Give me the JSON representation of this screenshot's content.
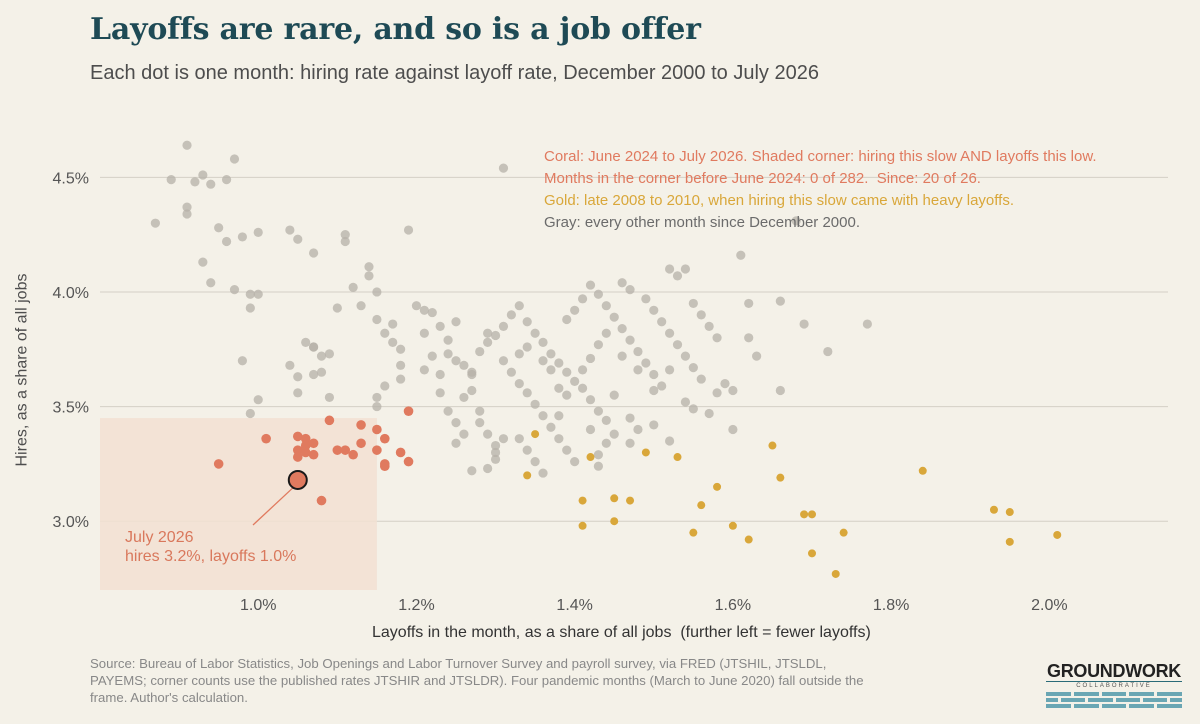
{
  "title": "Layoffs are rare, and so is a job offer",
  "subtitle": "Each dot is one month: hiring rate against layoff rate, December 2000 to July 2026",
  "legend": {
    "coral": "Coral: June 2024 to July 2026. Shaded corner: hiring this slow AND layoffs this low.",
    "counts": "Months in the corner before June 2024: 0 of 282.  Since: 20 of 26.",
    "gold": "Gold: late 2008 to 2010, when hiring this slow came with heavy layoffs.",
    "gray": "Gray: every other month since December 2000."
  },
  "annotation": {
    "line1": "July 2026",
    "line2": "hires 3.2%, layoffs 1.0%"
  },
  "source": "Source: Bureau of Labor Statistics, Job Openings and Labor Turnover Survey and payroll survey, via FRED (JTSHIL, JTSLDL, PAYEMS; corner counts use the published rates JTSHIR and JTSLDR). Four pandemic months (March to June 2020) fall outside the frame. Author's calculation.",
  "logo": {
    "name": "GROUNDWORK",
    "sub": "COLLABORATIVE"
  },
  "colors": {
    "background": "#f4f1e8",
    "title": "#1e4a55",
    "coral": "#e07a5f",
    "gold": "#d9a73a",
    "gray": "#b5b0a8",
    "shade": "#f2e0d2"
  },
  "chart_data": {
    "type": "scatter",
    "xlabel": "Layoffs in the month, as a share of all jobs  (further left = fewer layoffs)",
    "ylabel": "Hires, as a share of all jobs",
    "xlim": [
      0.8,
      2.15
    ],
    "ylim": [
      2.7,
      4.75
    ],
    "xticks": [
      "1.0%",
      "1.2%",
      "1.4%",
      "1.6%",
      "1.8%",
      "2.0%"
    ],
    "xtick_values": [
      1.0,
      1.2,
      1.4,
      1.6,
      1.8,
      2.0
    ],
    "yticks": [
      "3.0%",
      "3.5%",
      "4.0%",
      "4.5%"
    ],
    "ytick_values": [
      3.0,
      3.5,
      4.0,
      4.5
    ],
    "grid": "horizontal",
    "shaded_corner": {
      "x_max": 1.15,
      "y_max": 3.45
    },
    "highlight": {
      "label": "July 2026",
      "x": 1.05,
      "y": 3.18
    },
    "series": [
      {
        "name": "Coral: June 2024 to July 2026",
        "points": [
          [
            0.95,
            3.25
          ],
          [
            1.01,
            3.36
          ],
          [
            1.05,
            3.37
          ],
          [
            1.06,
            3.36
          ],
          [
            1.05,
            3.31
          ],
          [
            1.06,
            3.33
          ],
          [
            1.07,
            3.34
          ],
          [
            1.05,
            3.28
          ],
          [
            1.07,
            3.29
          ],
          [
            1.06,
            3.3
          ],
          [
            1.09,
            3.44
          ],
          [
            1.1,
            3.31
          ],
          [
            1.11,
            3.31
          ],
          [
            1.12,
            3.29
          ],
          [
            1.13,
            3.34
          ],
          [
            1.13,
            3.42
          ],
          [
            1.15,
            3.4
          ],
          [
            1.16,
            3.36
          ],
          [
            1.15,
            3.31
          ],
          [
            1.16,
            3.25
          ],
          [
            1.18,
            3.3
          ],
          [
            1.19,
            3.48
          ],
          [
            1.19,
            3.26
          ],
          [
            1.08,
            3.09
          ],
          [
            1.16,
            3.24
          ]
        ]
      },
      {
        "name": "Gold: late 2008 to 2010",
        "points": [
          [
            1.35,
            3.38
          ],
          [
            1.34,
            3.2
          ],
          [
            1.42,
            3.28
          ],
          [
            1.41,
            3.09
          ],
          [
            1.41,
            2.98
          ],
          [
            1.45,
            3.1
          ],
          [
            1.47,
            3.09
          ],
          [
            1.45,
            3.0
          ],
          [
            1.49,
            3.3
          ],
          [
            1.53,
            3.28
          ],
          [
            1.55,
            2.95
          ],
          [
            1.56,
            3.07
          ],
          [
            1.58,
            3.15
          ],
          [
            1.6,
            2.98
          ],
          [
            1.62,
            2.92
          ],
          [
            1.65,
            3.33
          ],
          [
            1.66,
            3.19
          ],
          [
            1.69,
            3.03
          ],
          [
            1.7,
            3.03
          ],
          [
            1.7,
            2.86
          ],
          [
            1.73,
            2.77
          ],
          [
            1.74,
            2.95
          ],
          [
            1.84,
            3.22
          ],
          [
            1.93,
            3.05
          ],
          [
            1.95,
            3.04
          ],
          [
            1.95,
            2.91
          ],
          [
            2.01,
            2.94
          ]
        ]
      },
      {
        "name": "Gray: every other month",
        "points": [
          [
            0.87,
            4.3
          ],
          [
            0.89,
            4.49
          ],
          [
            0.91,
            4.64
          ],
          [
            0.92,
            4.48
          ],
          [
            0.93,
            4.51
          ],
          [
            0.94,
            4.47
          ],
          [
            0.96,
            4.49
          ],
          [
            0.97,
            4.58
          ],
          [
            0.91,
            4.37
          ],
          [
            0.91,
            4.34
          ],
          [
            0.95,
            4.28
          ],
          [
            0.96,
            4.22
          ],
          [
            0.98,
            4.24
          ],
          [
            1.0,
            4.26
          ],
          [
            0.93,
            4.13
          ],
          [
            0.94,
            4.04
          ],
          [
            0.97,
            4.01
          ],
          [
            0.99,
            3.99
          ],
          [
            0.99,
            3.93
          ],
          [
            1.0,
            3.99
          ],
          [
            0.98,
            3.7
          ],
          [
            0.99,
            3.47
          ],
          [
            1.0,
            3.53
          ],
          [
            1.04,
            4.27
          ],
          [
            1.05,
            4.23
          ],
          [
            1.07,
            4.17
          ],
          [
            1.06,
            3.78
          ],
          [
            1.07,
            3.76
          ],
          [
            1.07,
            3.76
          ],
          [
            1.08,
            3.72
          ],
          [
            1.09,
            3.73
          ],
          [
            1.04,
            3.68
          ],
          [
            1.05,
            3.63
          ],
          [
            1.05,
            3.56
          ],
          [
            1.07,
            3.64
          ],
          [
            1.08,
            3.65
          ],
          [
            1.09,
            3.54
          ],
          [
            1.1,
            3.93
          ],
          [
            1.11,
            4.25
          ],
          [
            1.11,
            4.22
          ],
          [
            1.12,
            4.02
          ],
          [
            1.13,
            3.94
          ],
          [
            1.14,
            4.07
          ],
          [
            1.14,
            4.11
          ],
          [
            1.15,
            4.0
          ],
          [
            1.15,
            3.88
          ],
          [
            1.16,
            3.82
          ],
          [
            1.17,
            3.86
          ],
          [
            1.17,
            3.78
          ],
          [
            1.18,
            3.75
          ],
          [
            1.18,
            3.68
          ],
          [
            1.18,
            3.62
          ],
          [
            1.16,
            3.59
          ],
          [
            1.15,
            3.54
          ],
          [
            1.15,
            3.5
          ],
          [
            1.19,
            4.27
          ],
          [
            1.2,
            3.94
          ],
          [
            1.21,
            3.92
          ],
          [
            1.22,
            3.91
          ],
          [
            1.23,
            3.85
          ],
          [
            1.24,
            3.79
          ],
          [
            1.25,
            3.87
          ],
          [
            1.24,
            3.73
          ],
          [
            1.25,
            3.7
          ],
          [
            1.26,
            3.68
          ],
          [
            1.27,
            3.64
          ],
          [
            1.27,
            3.57
          ],
          [
            1.28,
            3.48
          ],
          [
            1.28,
            3.43
          ],
          [
            1.29,
            3.38
          ],
          [
            1.3,
            3.33
          ],
          [
            1.3,
            3.27
          ],
          [
            1.21,
            3.82
          ],
          [
            1.22,
            3.72
          ],
          [
            1.21,
            3.66
          ],
          [
            1.23,
            3.64
          ],
          [
            1.23,
            3.56
          ],
          [
            1.24,
            3.48
          ],
          [
            1.25,
            3.43
          ],
          [
            1.26,
            3.38
          ],
          [
            1.29,
            3.78
          ],
          [
            1.3,
            3.81
          ],
          [
            1.31,
            3.85
          ],
          [
            1.32,
            3.9
          ],
          [
            1.33,
            3.94
          ],
          [
            1.34,
            3.87
          ],
          [
            1.35,
            3.82
          ],
          [
            1.36,
            3.78
          ],
          [
            1.37,
            3.73
          ],
          [
            1.38,
            3.69
          ],
          [
            1.39,
            3.65
          ],
          [
            1.4,
            3.61
          ],
          [
            1.41,
            3.58
          ],
          [
            1.42,
            3.53
          ],
          [
            1.43,
            3.48
          ],
          [
            1.44,
            3.44
          ],
          [
            1.45,
            3.38
          ],
          [
            1.31,
            4.54
          ],
          [
            1.31,
            3.7
          ],
          [
            1.32,
            3.65
          ],
          [
            1.33,
            3.6
          ],
          [
            1.34,
            3.56
          ],
          [
            1.35,
            3.51
          ],
          [
            1.36,
            3.46
          ],
          [
            1.37,
            3.41
          ],
          [
            1.38,
            3.36
          ],
          [
            1.39,
            3.31
          ],
          [
            1.4,
            3.26
          ],
          [
            1.33,
            3.36
          ],
          [
            1.34,
            3.31
          ],
          [
            1.35,
            3.26
          ],
          [
            1.36,
            3.21
          ],
          [
            1.38,
            3.46
          ],
          [
            1.39,
            3.88
          ],
          [
            1.4,
            3.92
          ],
          [
            1.41,
            3.97
          ],
          [
            1.42,
            4.03
          ],
          [
            1.43,
            3.99
          ],
          [
            1.44,
            3.94
          ],
          [
            1.45,
            3.89
          ],
          [
            1.46,
            3.84
          ],
          [
            1.47,
            3.79
          ],
          [
            1.48,
            3.74
          ],
          [
            1.49,
            3.69
          ],
          [
            1.5,
            3.64
          ],
          [
            1.51,
            3.59
          ],
          [
            1.46,
            4.04
          ],
          [
            1.47,
            4.01
          ],
          [
            1.49,
            3.97
          ],
          [
            1.5,
            3.92
          ],
          [
            1.51,
            3.87
          ],
          [
            1.52,
            3.82
          ],
          [
            1.53,
            3.77
          ],
          [
            1.54,
            3.72
          ],
          [
            1.55,
            3.67
          ],
          [
            1.56,
            3.62
          ],
          [
            1.52,
            4.1
          ],
          [
            1.53,
            4.07
          ],
          [
            1.54,
            4.1
          ],
          [
            1.55,
            3.95
          ],
          [
            1.56,
            3.9
          ],
          [
            1.57,
            3.85
          ],
          [
            1.58,
            3.8
          ],
          [
            1.59,
            3.6
          ],
          [
            1.6,
            3.57
          ],
          [
            1.6,
            3.4
          ],
          [
            1.61,
            4.16
          ],
          [
            1.62,
            3.95
          ],
          [
            1.62,
            3.8
          ],
          [
            1.63,
            3.72
          ],
          [
            1.66,
            3.96
          ],
          [
            1.68,
            4.31
          ],
          [
            1.69,
            3.86
          ],
          [
            1.72,
            3.74
          ],
          [
            1.77,
            3.86
          ],
          [
            1.66,
            3.57
          ],
          [
            1.58,
            3.56
          ],
          [
            1.57,
            3.47
          ],
          [
            1.48,
            3.4
          ],
          [
            1.44,
            3.34
          ],
          [
            1.43,
            3.29
          ],
          [
            1.43,
            3.24
          ],
          [
            1.47,
            3.34
          ],
          [
            1.5,
            3.42
          ],
          [
            1.52,
            3.35
          ],
          [
            1.47,
            3.45
          ],
          [
            1.31,
            3.36
          ],
          [
            1.3,
            3.3
          ],
          [
            1.29,
            3.23
          ],
          [
            1.27,
            3.22
          ],
          [
            1.25,
            3.34
          ],
          [
            1.26,
            3.54
          ],
          [
            1.27,
            3.65
          ],
          [
            1.28,
            3.74
          ],
          [
            1.29,
            3.82
          ],
          [
            1.33,
            3.73
          ],
          [
            1.34,
            3.76
          ],
          [
            1.36,
            3.7
          ],
          [
            1.37,
            3.66
          ],
          [
            1.38,
            3.58
          ],
          [
            1.39,
            3.55
          ],
          [
            1.41,
            3.66
          ],
          [
            1.42,
            3.71
          ],
          [
            1.43,
            3.77
          ],
          [
            1.44,
            3.82
          ],
          [
            1.46,
            3.72
          ],
          [
            1.48,
            3.66
          ],
          [
            1.5,
            3.57
          ],
          [
            1.52,
            3.66
          ],
          [
            1.54,
            3.52
          ],
          [
            1.55,
            3.49
          ],
          [
            1.45,
            3.55
          ],
          [
            1.42,
            3.4
          ]
        ]
      }
    ]
  }
}
